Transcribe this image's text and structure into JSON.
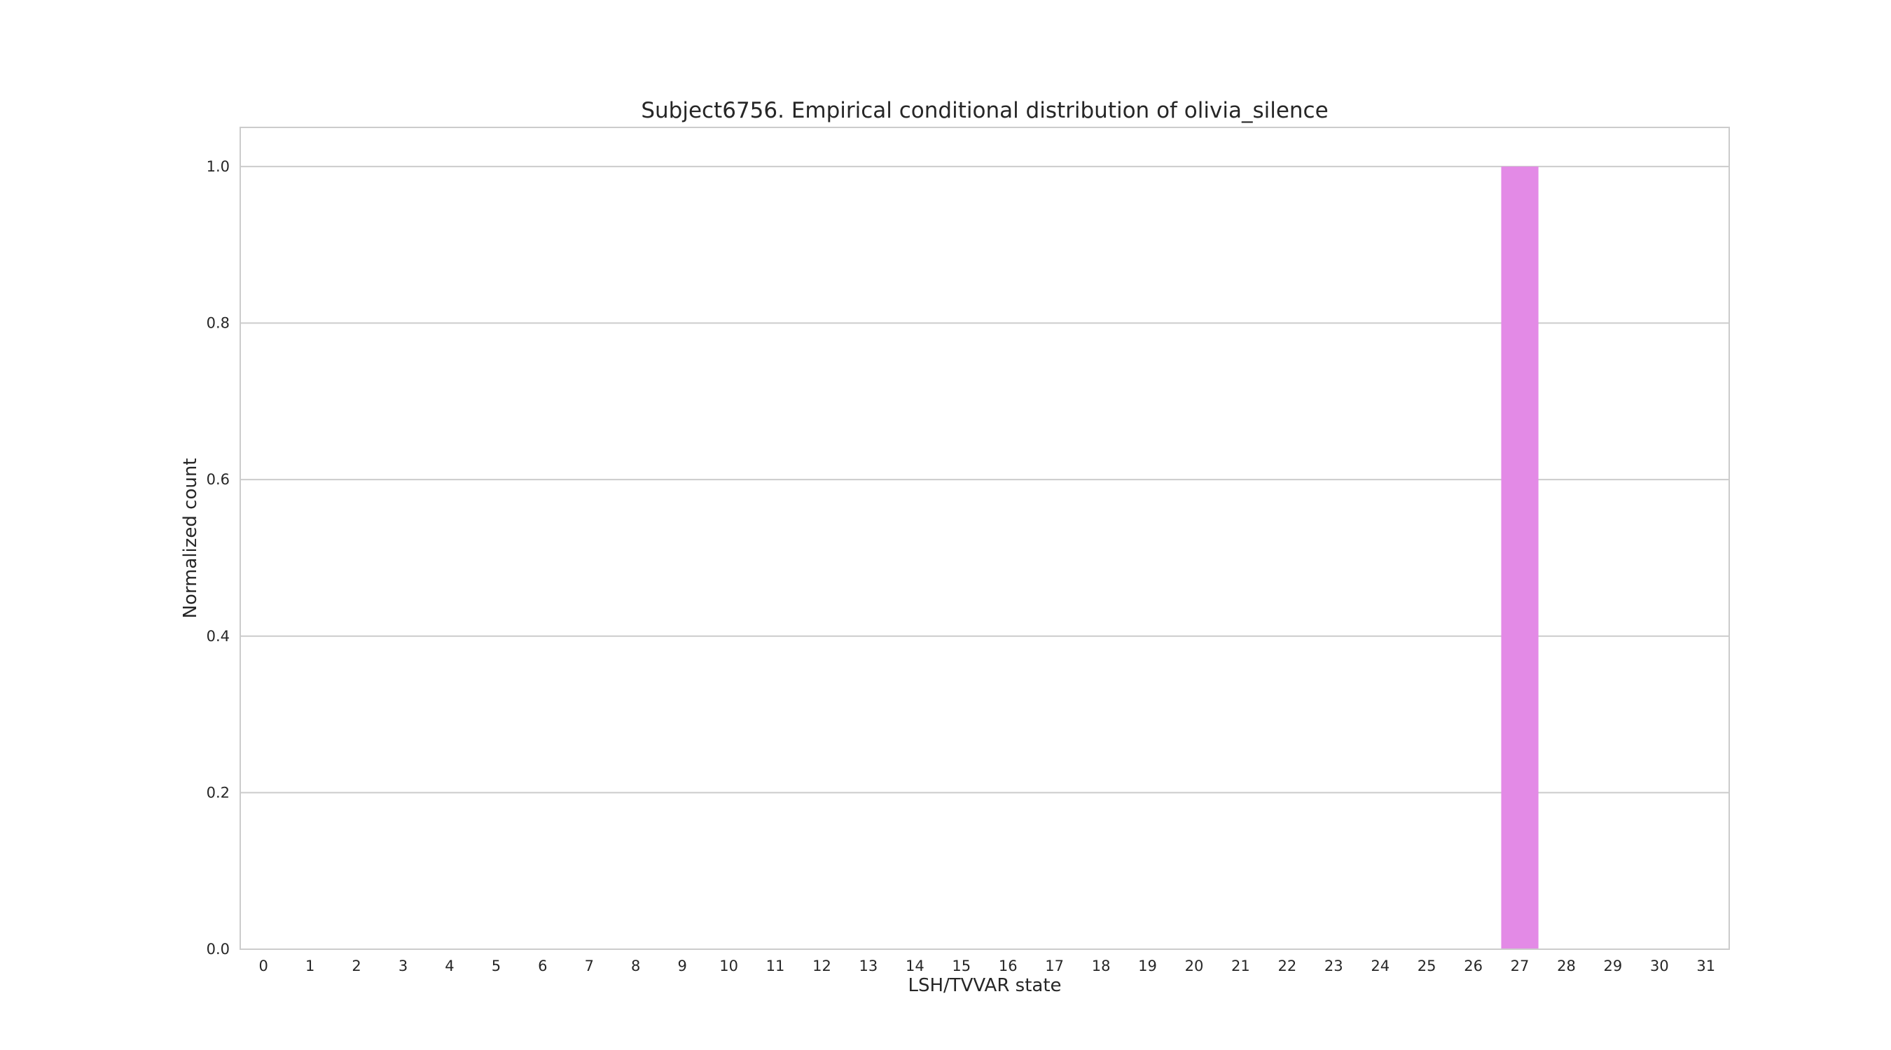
{
  "chart_data": {
    "type": "bar",
    "title": "Subject6756. Empirical conditional distribution of olivia_silence",
    "xlabel": "LSH/TVVAR state",
    "ylabel": "Normalized count",
    "categories": [
      "0",
      "1",
      "2",
      "3",
      "4",
      "5",
      "6",
      "7",
      "8",
      "9",
      "10",
      "11",
      "12",
      "13",
      "14",
      "15",
      "16",
      "17",
      "18",
      "19",
      "20",
      "21",
      "22",
      "23",
      "24",
      "25",
      "26",
      "27",
      "28",
      "29",
      "30",
      "31"
    ],
    "values": [
      0,
      0,
      0,
      0,
      0,
      0,
      0,
      0,
      0,
      0,
      0,
      0,
      0,
      0,
      0,
      0,
      0,
      0,
      0,
      0,
      0,
      0,
      0,
      0,
      0,
      0,
      0,
      1.0,
      0,
      0,
      0,
      0
    ],
    "ylim": [
      0,
      1.05
    ],
    "yticks": [
      0.0,
      0.2,
      0.4,
      0.6,
      0.8,
      1.0
    ],
    "ytick_labels": [
      "0.0",
      "0.2",
      "0.4",
      "0.6",
      "0.8",
      "1.0"
    ],
    "grid": "horizontal",
    "legend": "none",
    "bar_color": "#e38ae6",
    "grid_color": "#cccccc",
    "text_color": "#262626"
  }
}
